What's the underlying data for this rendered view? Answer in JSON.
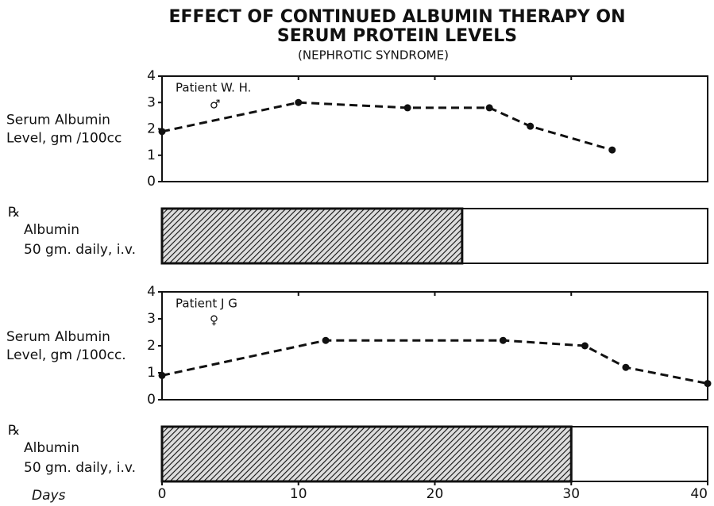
{
  "title": [
    "EFFECT OF CONTINUED ALBUMIN THERAPY ON",
    "SERUM PROTEIN LEVELS"
  ],
  "subtitle": "(NEPHROTIC SYNDROME)",
  "chart_data": [
    {
      "type": "line",
      "annotation": "Patient W. H.",
      "symbol": "♂",
      "ylabel": [
        "Serum Albumin",
        "Level, gm /100cc"
      ],
      "x": [
        0,
        10,
        18,
        24,
        27,
        33
      ],
      "values": [
        1.9,
        3.0,
        2.8,
        2.8,
        2.1,
        1.2
      ],
      "xlim": [
        0,
        40
      ],
      "xticks": [
        0,
        10,
        20,
        30,
        40
      ],
      "ylim": [
        0,
        4
      ],
      "yticks": [
        0,
        1,
        2,
        3,
        4
      ],
      "color": "#111111"
    },
    {
      "type": "range",
      "label": [
        "℞",
        "Albumin",
        "50 gm. daily, i.v."
      ],
      "start": 0,
      "end": 22,
      "xlim": [
        0,
        40
      ],
      "color": "#111111"
    },
    {
      "type": "line",
      "annotation": "Patient J G",
      "symbol": "♀",
      "ylabel": [
        "Serum Albumin",
        "Level, gm /100cc."
      ],
      "x": [
        0,
        12,
        25,
        31,
        34,
        40
      ],
      "values": [
        0.9,
        2.2,
        2.2,
        2.0,
        1.2,
        0.6
      ],
      "xlim": [
        0,
        40
      ],
      "xticks": [
        0,
        10,
        20,
        30,
        40
      ],
      "ylim": [
        0,
        4
      ],
      "yticks": [
        0,
        1,
        2,
        3,
        4
      ],
      "color": "#111111"
    },
    {
      "type": "range",
      "label": [
        "℞",
        "Albumin",
        "50 gm. daily, i.v."
      ],
      "start": 0,
      "end": 30,
      "xlim": [
        0,
        40
      ],
      "xticks": [
        0,
        10,
        20,
        30,
        40
      ],
      "xlabel": "Days",
      "color": "#111111"
    }
  ]
}
